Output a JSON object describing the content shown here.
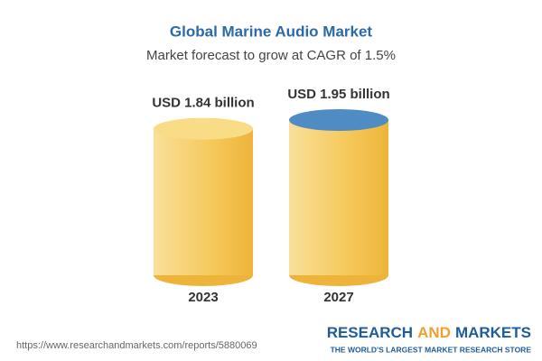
{
  "chart_data": {
    "type": "cylinder",
    "title": "Global Marine Audio Market",
    "subtitle": "Market forecast to grow at CAGR of 1.5%",
    "categories": [
      "2023",
      "2027"
    ],
    "values": [
      1.84,
      1.95
    ],
    "value_labels": [
      "USD 1.84 billion",
      "USD 1.95 billion"
    ],
    "color": "#f3c552",
    "top_colors": [
      "#f8dc86",
      "#4f8cc4"
    ]
  },
  "footer": {
    "url": "https://www.researchandmarkets.com/reports/5880069",
    "logo_words": [
      "RESEARCH",
      "AND",
      "MARKETS"
    ],
    "tagline": "THE WORLD'S LARGEST MARKET RESEARCH STORE"
  }
}
